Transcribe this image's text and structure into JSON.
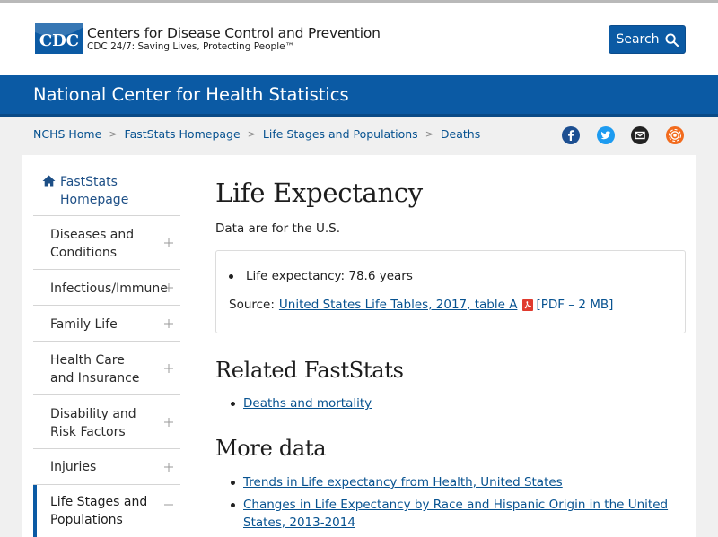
{
  "header": {
    "logo_text": "CDC",
    "site_title": "Centers for Disease Control and Prevention",
    "tagline": "CDC 24/7: Saving Lives, Protecting People™",
    "search_label": "Search"
  },
  "banner": {
    "title": "National Center for Health Statistics"
  },
  "breadcrumb": {
    "items": [
      "NCHS Home",
      "FastStats Homepage",
      "Life Stages and Populations",
      "Deaths"
    ],
    "separator": ">"
  },
  "social": {
    "icons": [
      "facebook-icon",
      "twitter-icon",
      "email-icon",
      "syndicate-icon"
    ],
    "colors": {
      "facebook": "#1d4f91",
      "twitter": "#1d9bf0",
      "email": "#222222",
      "syndicate": "#f26b1d"
    }
  },
  "nav": {
    "home_label": "FastStats Homepage",
    "items": [
      {
        "label": "Diseases and Conditions",
        "state": "+"
      },
      {
        "label": "Infectious/Immune",
        "state": "+"
      },
      {
        "label": "Family Life",
        "state": "+"
      },
      {
        "label": "Health Care and Insurance",
        "state": "+"
      },
      {
        "label": "Disability and Risk Factors",
        "state": "+"
      },
      {
        "label": "Injuries",
        "state": "+"
      },
      {
        "label": "Life Stages and Populations",
        "state": "−"
      }
    ]
  },
  "main": {
    "title": "Life Expectancy",
    "lede": "Data are for the U.S.",
    "stat": "Life expectancy: 78.6 years",
    "source_label": "Source:",
    "source_link": "United States Life Tables, 2017, table A",
    "source_pdf": "[PDF – 2 MB]",
    "related_heading": "Related FastStats",
    "related_links": [
      "Deaths and mortality"
    ],
    "more_heading": "More data",
    "more_links": [
      "Trends in Life expectancy from Health, United States",
      "Changes in Life Expectancy by Race and Hispanic Origin in the United States, 2013-2014"
    ]
  },
  "colors": {
    "brand_blue": "#0b5aa4",
    "link": "#075290",
    "pdf_red": "#e03a2e"
  }
}
